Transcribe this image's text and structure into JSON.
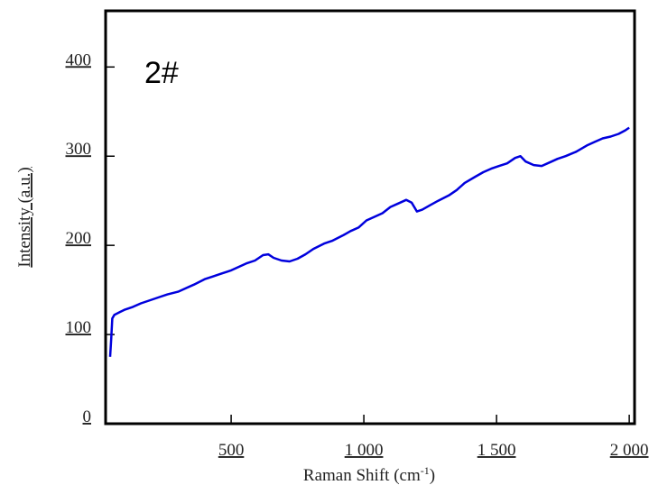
{
  "chart_data": {
    "type": "line",
    "annotation": "2#",
    "x_label": "Raman Shift (cm",
    "x_label_sup": "-1",
    "x_label_end": ")",
    "y_label": "Intensity (a.u.)",
    "color": "#0000dd",
    "x": [
      44,
      48,
      52,
      60,
      80,
      100,
      130,
      160,
      200,
      230,
      260,
      300,
      330,
      360,
      400,
      430,
      460,
      500,
      530,
      560,
      590,
      620,
      640,
      660,
      690,
      720,
      750,
      780,
      810,
      850,
      880,
      920,
      950,
      980,
      1010,
      1040,
      1070,
      1100,
      1130,
      1160,
      1180,
      1200,
      1220,
      1250,
      1280,
      1320,
      1350,
      1380,
      1420,
      1450,
      1480,
      1510,
      1540,
      1570,
      1590,
      1610,
      1640,
      1670,
      1700,
      1730,
      1760,
      1800,
      1840,
      1870,
      1900,
      1930,
      1960,
      1985,
      2000
    ],
    "values": [
      75,
      95,
      118,
      122,
      125,
      128,
      131,
      135,
      139,
      142,
      145,
      148,
      152,
      156,
      162,
      165,
      168,
      172,
      176,
      180,
      183,
      189,
      190,
      186,
      183,
      182,
      185,
      190,
      196,
      202,
      205,
      211,
      216,
      220,
      228,
      232,
      236,
      243,
      247,
      251,
      248,
      238,
      240,
      245,
      250,
      256,
      262,
      270,
      277,
      282,
      286,
      289,
      292,
      298,
      300,
      294,
      290,
      289,
      293,
      297,
      300,
      305,
      312,
      316,
      320,
      322,
      325,
      329,
      332
    ],
    "xlim": [
      27,
      2020
    ],
    "ylim": [
      0,
      463
    ],
    "xticks": [
      {
        "value": 500,
        "label": "500"
      },
      {
        "value": 1000,
        "label": "1 000"
      },
      {
        "value": 1500,
        "label": "1 500"
      },
      {
        "value": 2000,
        "label": "2 000"
      }
    ],
    "yticks": [
      0,
      100,
      200,
      300,
      400
    ]
  }
}
